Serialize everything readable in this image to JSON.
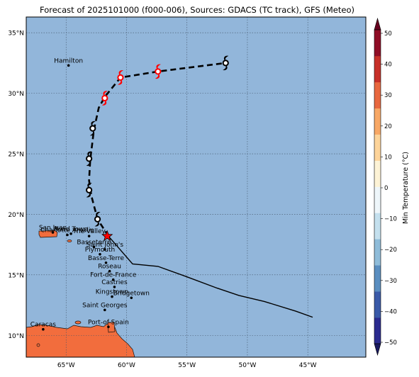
{
  "title": "Forecast of 2025101000 (f000-006), Sources: GDACS (TC track), GFS (Meteo)",
  "colorbar": {
    "label": "Min Temperature (°C)",
    "ticks": [
      "50",
      "40",
      "30",
      "20",
      "10",
      "0",
      "−10",
      "−20",
      "−30",
      "−40",
      "−50"
    ],
    "colors": [
      "#2b2b8f",
      "#3a5aa8",
      "#5a8ec0",
      "#8fbcd9",
      "#c4e0ee",
      "#eef6fa",
      "#fdf3d6",
      "#fdd49a",
      "#f8a866",
      "#e8683f",
      "#c73029",
      "#8f0d26"
    ]
  },
  "axes": {
    "lat_ticks": [
      "35°N",
      "30°N",
      "25°N",
      "20°N",
      "15°N",
      "10°N"
    ],
    "lon_ticks": [
      "65°W",
      "60°W",
      "55°W",
      "50°W",
      "45°W"
    ]
  },
  "colors": {
    "ocean": "#92b6da",
    "land": "#f26d3d",
    "track_past": "#000000",
    "tc_marker": "#ff0000"
  },
  "places": [
    {
      "name": "Hamilton",
      "lon": -64.8,
      "lat": 32.3
    },
    {
      "name": "San Juan",
      "lon": -66.1,
      "lat": 18.5
    },
    {
      "name": "Charlotte Amalie",
      "lon": -64.9,
      "lat": 18.3
    },
    {
      "name": "Road Town",
      "lon": -64.6,
      "lat": 18.4
    },
    {
      "name": "The Valley",
      "lon": -63.1,
      "lat": 18.2
    },
    {
      "name": "Basseterre",
      "lon": -62.7,
      "lat": 17.3
    },
    {
      "name": "Saint John's",
      "lon": -61.8,
      "lat": 17.1
    },
    {
      "name": "Plymouth",
      "lon": -62.2,
      "lat": 16.7
    },
    {
      "name": "Basse-Terre",
      "lon": -61.7,
      "lat": 16.0
    },
    {
      "name": "Roseau",
      "lon": -61.4,
      "lat": 15.3
    },
    {
      "name": "Fort-de-France",
      "lon": -61.1,
      "lat": 14.6
    },
    {
      "name": "Castries",
      "lon": -61.0,
      "lat": 14.0
    },
    {
      "name": "Bridgetown",
      "lon": -59.6,
      "lat": 13.1
    },
    {
      "name": "Kingstown",
      "lon": -61.2,
      "lat": 13.2
    },
    {
      "name": "Saint Georges",
      "lon": -61.8,
      "lat": 12.1
    },
    {
      "name": "Port-of-Spain",
      "lon": -61.5,
      "lat": 10.7
    },
    {
      "name": "Caracas",
      "lon": -66.9,
      "lat": 10.5
    }
  ],
  "track_observed": [
    {
      "lon": -44.6,
      "lat": 11.5
    },
    {
      "lon": -46.0,
      "lat": 12.0
    },
    {
      "lon": -48.6,
      "lat": 12.8
    },
    {
      "lon": -50.7,
      "lat": 13.3
    },
    {
      "lon": -52.5,
      "lat": 13.9
    },
    {
      "lon": -54.9,
      "lat": 14.8
    },
    {
      "lon": -57.4,
      "lat": 15.7
    },
    {
      "lon": -59.5,
      "lat": 15.9
    },
    {
      "lon": -61.5,
      "lat": 18.2
    }
  ],
  "track_forecast": [
    {
      "lon": -61.5,
      "lat": 18.2
    },
    {
      "lon": -62.4,
      "lat": 19.6
    },
    {
      "lon": -62.9,
      "lat": 21.5
    },
    {
      "lon": -63.1,
      "lat": 22.8
    },
    {
      "lon": -63.0,
      "lat": 24.5
    },
    {
      "lon": -62.7,
      "lat": 27.0
    },
    {
      "lon": -62.3,
      "lat": 28.8
    },
    {
      "lon": -61.8,
      "lat": 29.7
    },
    {
      "lon": -60.5,
      "lat": 31.3
    },
    {
      "lon": -57.4,
      "lat": 31.8
    },
    {
      "lon": -51.8,
      "lat": 32.5
    }
  ],
  "tc_symbols": [
    {
      "lon": -62.4,
      "lat": 19.6,
      "color": "#000000"
    },
    {
      "lon": -63.1,
      "lat": 22.0,
      "color": "#000000"
    },
    {
      "lon": -63.1,
      "lat": 24.6,
      "color": "#000000"
    },
    {
      "lon": -62.8,
      "lat": 27.1,
      "color": "#000000"
    },
    {
      "lon": -61.8,
      "lat": 29.6,
      "color": "#ff0000"
    },
    {
      "lon": -60.5,
      "lat": 31.3,
      "color": "#ff0000"
    },
    {
      "lon": -57.4,
      "lat": 31.8,
      "color": "#ff0000"
    },
    {
      "lon": -51.8,
      "lat": 32.5,
      "color": "#000000"
    }
  ],
  "current_position": {
    "lon": -61.6,
    "lat": 18.2
  }
}
